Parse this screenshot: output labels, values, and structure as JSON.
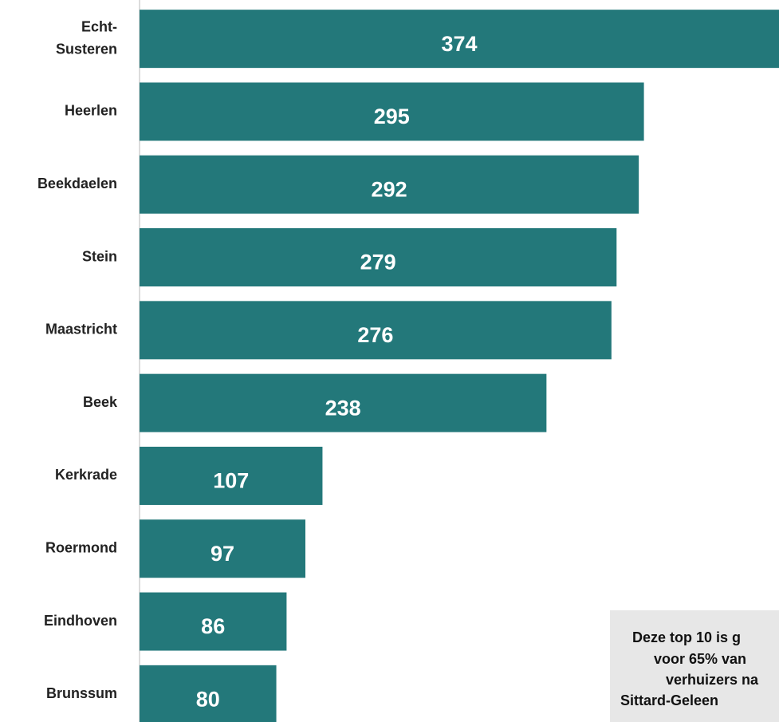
{
  "chart_data": {
    "type": "bar",
    "orientation": "horizontal",
    "categories": [
      "Echt-Susteren",
      "Heerlen",
      "Beekdaelen",
      "Stein",
      "Maastricht",
      "Beek",
      "Kerkrade",
      "Roermond",
      "Eindhoven",
      "Brunssum"
    ],
    "values": [
      374,
      295,
      292,
      279,
      276,
      238,
      107,
      97,
      86,
      80
    ],
    "color": "#23787a",
    "xlim": [
      0,
      374
    ],
    "annotation": [
      "Deze top 10 is g",
      "voor 65% van",
      "verhuizers na",
      "Sittard-Geleen"
    ]
  }
}
